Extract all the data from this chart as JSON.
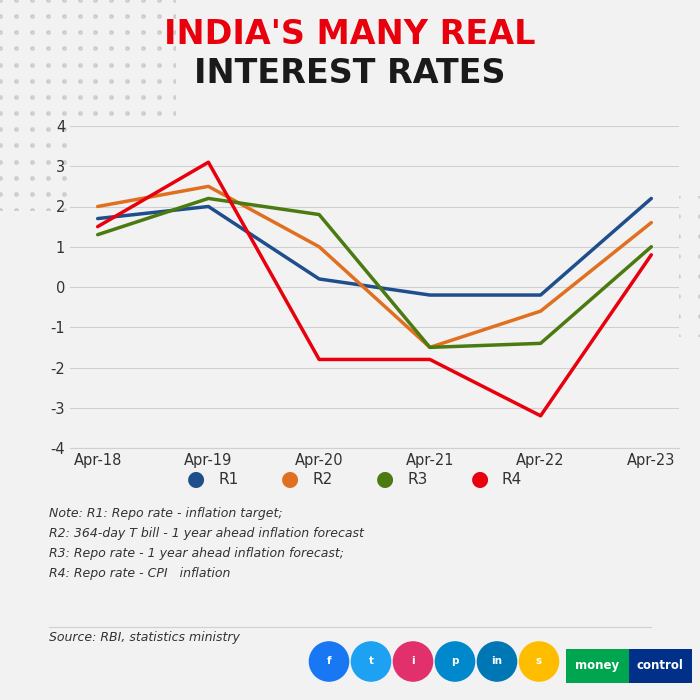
{
  "title_line1": "INDIA'S MANY REAL",
  "title_line2": "INTEREST RATES",
  "title_color1": "#e8000d",
  "title_color2": "#1a1a1a",
  "x_labels": [
    "Apr-18",
    "Apr-19",
    "Apr-20",
    "Apr-21",
    "Apr-22",
    "Apr-23"
  ],
  "R1": [
    1.7,
    2.0,
    0.2,
    -0.2,
    -0.2,
    2.2
  ],
  "R2": [
    2.0,
    2.5,
    1.0,
    -1.5,
    -0.6,
    1.6
  ],
  "R3": [
    1.3,
    2.2,
    1.8,
    -1.5,
    -1.4,
    1.0
  ],
  "R4": [
    1.5,
    3.1,
    -1.8,
    -1.8,
    -3.2,
    0.8
  ],
  "colors": {
    "R1": "#1f4e8c",
    "R2": "#e07020",
    "R3": "#4a7a10",
    "R4": "#e8000d"
  },
  "ylim": [
    -4,
    4
  ],
  "yticks": [
    -4,
    -3,
    -2,
    -1,
    0,
    1,
    2,
    3,
    4
  ],
  "bg_color": "#f2f2f2",
  "plot_bg_color": "#f2f2f2",
  "grid_color": "#d0d0d0",
  "note_text": "Note: R1: Repo rate - inflation target;\nR2: 364-day T bill - 1 year ahead inflation forecast\nR3: Repo rate - 1 year ahead inflation forecast;\nR4: Repo rate - CPI   inflation",
  "source_text": "Source: RBI, statistics ministry",
  "line_width": 2.5,
  "social_icons": [
    [
      "#1877f2",
      "f"
    ],
    [
      "#1da1f2",
      "t"
    ],
    [
      "#e1306c",
      "i"
    ],
    [
      "#0088cc",
      "p"
    ],
    [
      "#0077b5",
      "in"
    ],
    [
      "#ffbd00",
      "s"
    ]
  ],
  "mc_green": "#00a550",
  "mc_blue": "#003087"
}
